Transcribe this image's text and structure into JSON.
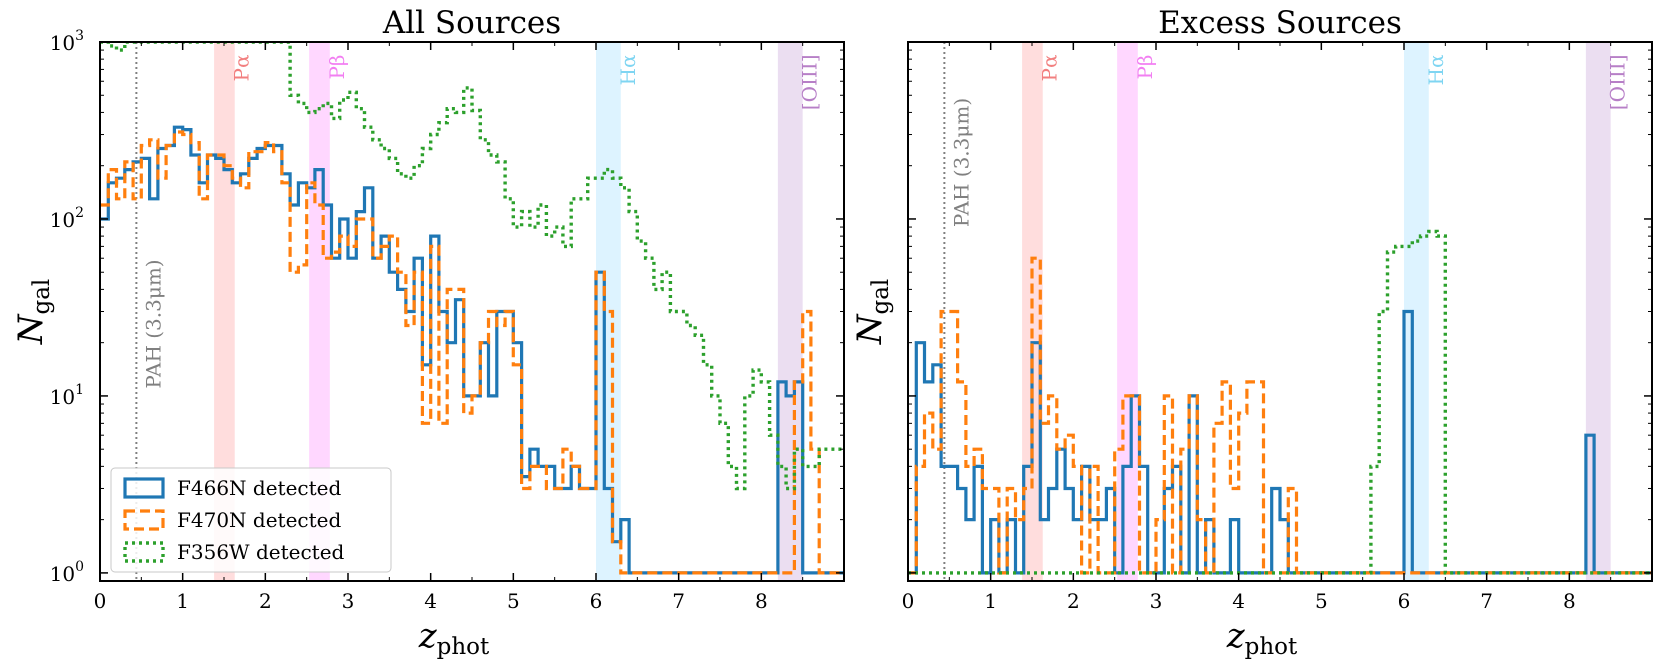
{
  "colors": {
    "f466n": "#1f77b4",
    "f470n": "#ff7f0e",
    "f356w": "#2ca02c",
    "pa": "#ff9f9f",
    "pb": "#ff8cff",
    "ha": "#9fdcff",
    "oiii": "#c7a0d7",
    "pah": "#808080",
    "pa_text": "#f27f7f",
    "pb_text": "#f27ff2",
    "ha_text": "#7fd5f2",
    "oiii_text": "#b77fc7"
  },
  "chart_data": [
    {
      "type": "step-histogram",
      "title": "All Sources",
      "xlabel": "z",
      "xlabel_sub": "phot",
      "ylabel": "N",
      "ylabel_sub": "gal",
      "xlim": [
        0,
        9
      ],
      "ylim": [
        0.9,
        1000
      ],
      "yscale": "log",
      "xticks": [
        "0",
        "1",
        "2",
        "3",
        "4",
        "5",
        "6",
        "7",
        "8"
      ],
      "yticks": [
        {
          "base": "10",
          "exp": "0"
        },
        {
          "base": "10",
          "exp": "1"
        },
        {
          "base": "10",
          "exp": "2"
        },
        {
          "base": "10",
          "exp": "3"
        }
      ],
      "bin_start": 0.0,
      "bin_width": 0.1,
      "legend": {
        "position": "lower-left",
        "entries": [
          "F466N detected",
          "F470N detected",
          "F356W detected"
        ]
      },
      "emission_lines": [
        {
          "label": "PAH (3.3μm)",
          "x": 0.44,
          "kind": "line",
          "color_key": "pah",
          "text_color_key": "pah",
          "label_y": 11,
          "label_orient": "vertical"
        },
        {
          "label": "Pα",
          "x0": 1.38,
          "x1": 1.63,
          "kind": "band",
          "color_key": "pa",
          "text_color_key": "pa_text",
          "label_y": 850
        },
        {
          "label": "Pβ",
          "x0": 2.53,
          "x1": 2.78,
          "kind": "band",
          "color_key": "pb",
          "text_color_key": "pb_text",
          "label_y": 850
        },
        {
          "label": "Hα",
          "x0": 6.0,
          "x1": 6.3,
          "kind": "band",
          "color_key": "ha",
          "text_color_key": "ha_text",
          "label_y": 850
        },
        {
          "label": "[OIII]",
          "x0": 8.2,
          "x1": 8.5,
          "kind": "band",
          "color_key": "oiii",
          "text_color_key": "oiii_text",
          "label_y": 850
        }
      ],
      "series": [
        {
          "name": "F466N detected",
          "color_key": "f466n",
          "style": "solid",
          "values": [
            100,
            160,
            170,
            190,
            210,
            220,
            130,
            250,
            260,
            330,
            320,
            230,
            160,
            230,
            220,
            190,
            160,
            180,
            220,
            250,
            260,
            260,
            180,
            120,
            160,
            150,
            190,
            120,
            60,
            100,
            60,
            110,
            150,
            60,
            80,
            50,
            40,
            30,
            60,
            15,
            80,
            30,
            20,
            35,
            10,
            10,
            20,
            10,
            30,
            30,
            20,
            3.5,
            5,
            4,
            4,
            3,
            3,
            4,
            3,
            3,
            50,
            3,
            1.5,
            2,
            1,
            1,
            1,
            1,
            1,
            1,
            1,
            1,
            1,
            1,
            1,
            1,
            1,
            1,
            1,
            1,
            1,
            1,
            12,
            10,
            12,
            1,
            1,
            1,
            1,
            1
          ]
        },
        {
          "name": "F470N detected",
          "color_key": "f470n",
          "style": "dashed",
          "values": [
            120,
            190,
            130,
            210,
            130,
            260,
            280,
            170,
            260,
            310,
            300,
            270,
            130,
            230,
            230,
            200,
            170,
            150,
            240,
            240,
            270,
            240,
            160,
            50,
            55,
            160,
            120,
            60,
            65,
            80,
            70,
            100,
            100,
            60,
            70,
            80,
            50,
            25,
            50,
            7,
            70,
            7,
            40,
            40,
            8,
            10,
            20,
            30,
            25,
            30,
            15,
            3,
            4,
            4,
            3,
            3,
            5,
            4,
            3,
            3,
            50,
            30,
            1.5,
            1,
            1,
            1,
            1,
            1,
            1,
            1,
            1,
            1,
            1,
            1,
            1,
            1,
            1,
            1,
            1,
            1,
            1,
            1,
            1,
            1,
            12,
            30,
            5,
            1,
            1,
            1
          ]
        },
        {
          "name": "F356W detected",
          "color_key": "f356w",
          "style": "dotted",
          "values": [
            1000,
            950,
            900,
            1000,
            1000,
            1000,
            1000,
            1000,
            1000,
            1000,
            1000,
            1000,
            1000,
            1000,
            1000,
            1000,
            1000,
            1000,
            1000,
            1000,
            1000,
            1000,
            1000,
            500,
            450,
            400,
            420,
            450,
            370,
            470,
            520,
            420,
            330,
            280,
            250,
            220,
            180,
            170,
            200,
            250,
            300,
            350,
            420,
            400,
            550,
            410,
            280,
            230,
            210,
            130,
            90,
            110,
            90,
            120,
            80,
            90,
            70,
            130,
            130,
            170,
            170,
            190,
            170,
            150,
            110,
            75,
            60,
            40,
            50,
            30,
            30,
            25,
            22,
            15,
            10,
            7,
            4,
            3,
            10,
            14,
            12,
            6,
            4,
            3,
            5,
            4,
            4,
            5,
            5,
            5
          ]
        }
      ]
    },
    {
      "type": "step-histogram",
      "title": "Excess Sources",
      "xlabel": "z",
      "xlabel_sub": "phot",
      "ylabel": "N",
      "ylabel_sub": "gal",
      "xlim": [
        0,
        9
      ],
      "ylim": [
        0.9,
        1000
      ],
      "yscale": "log",
      "xticks": [
        "0",
        "1",
        "2",
        "3",
        "4",
        "5",
        "6",
        "7",
        "8"
      ],
      "yticks": [],
      "bin_start": 0.0,
      "bin_width": 0.1,
      "emission_lines": [
        {
          "label": "PAH (3.3μm)",
          "x": 0.44,
          "kind": "line",
          "color_key": "pah",
          "text_color_key": "pah",
          "label_y": 90,
          "label_orient": "vertical"
        },
        {
          "label": "Pα",
          "x0": 1.38,
          "x1": 1.63,
          "kind": "band",
          "color_key": "pa",
          "text_color_key": "pa_text",
          "label_y": 850
        },
        {
          "label": "Pβ",
          "x0": 2.53,
          "x1": 2.78,
          "kind": "band",
          "color_key": "pb",
          "text_color_key": "pb_text",
          "label_y": 850
        },
        {
          "label": "Hα",
          "x0": 6.0,
          "x1": 6.3,
          "kind": "band",
          "color_key": "ha",
          "text_color_key": "ha_text",
          "label_y": 850
        },
        {
          "label": "[OIII]",
          "x0": 8.2,
          "x1": 8.5,
          "kind": "band",
          "color_key": "oiii",
          "text_color_key": "oiii_text",
          "label_y": 850
        }
      ],
      "series": [
        {
          "name": "F466N detected",
          "color_key": "f466n",
          "style": "solid",
          "values": [
            1,
            20,
            12,
            15,
            4,
            4,
            3,
            2,
            4,
            1,
            2,
            1,
            2,
            1,
            4,
            20,
            2,
            3,
            5,
            3,
            2,
            4,
            2,
            2,
            3,
            1,
            4,
            10,
            4,
            1,
            1,
            3,
            4,
            1,
            10,
            1,
            2,
            1,
            1,
            2,
            1,
            1,
            1,
            1,
            3,
            2,
            1,
            1,
            1,
            1,
            1,
            1,
            1,
            1,
            1,
            1,
            1,
            1,
            1,
            1,
            30,
            1,
            1,
            1,
            1,
            1,
            1,
            1,
            1,
            1,
            1,
            1,
            1,
            1,
            1,
            1,
            1,
            1,
            1,
            1,
            1,
            1,
            6,
            1,
            1,
            1,
            1,
            1,
            1,
            1
          ]
        },
        {
          "name": "F470N detected",
          "color_key": "f470n",
          "style": "dashed",
          "values": [
            1,
            4,
            8,
            5,
            30,
            30,
            12,
            4,
            5,
            3,
            3,
            1,
            3,
            2,
            3,
            60,
            7,
            10,
            5,
            6,
            4,
            1,
            4,
            1,
            1,
            5,
            10,
            10,
            1,
            1,
            2,
            10,
            1,
            5,
            10,
            2,
            1,
            7,
            12,
            3,
            8,
            12,
            12,
            1,
            1,
            1,
            3,
            1,
            1,
            1,
            1,
            1,
            1,
            1,
            1,
            1,
            1,
            1,
            1,
            1,
            1,
            1,
            1,
            1,
            1,
            1,
            1,
            1,
            1,
            1,
            1,
            1,
            1,
            1,
            1,
            1,
            1,
            1,
            1,
            1,
            1,
            1,
            1,
            1,
            1,
            1,
            1,
            1,
            1,
            1
          ]
        },
        {
          "name": "F356W detected",
          "color_key": "f356w",
          "style": "dotted",
          "values": [
            1,
            1,
            1,
            1,
            1,
            1,
            1,
            1,
            1,
            1,
            1,
            1,
            1,
            1,
            1,
            1,
            1,
            1,
            1,
            1,
            1,
            1,
            1,
            1,
            1,
            1,
            1,
            1,
            1,
            1,
            1,
            1,
            1,
            1,
            1,
            1,
            1,
            1,
            1,
            1,
            1,
            1,
            1,
            1,
            1,
            1,
            1,
            1,
            1,
            1,
            1,
            1,
            1,
            1,
            1,
            1,
            4,
            30,
            65,
            70,
            70,
            75,
            80,
            85,
            80,
            1,
            1,
            1,
            1,
            1,
            1,
            1,
            1,
            1,
            1,
            1,
            1,
            1,
            1,
            1,
            1,
            1,
            1,
            1,
            1,
            1,
            1,
            1,
            1,
            1
          ]
        }
      ]
    }
  ]
}
